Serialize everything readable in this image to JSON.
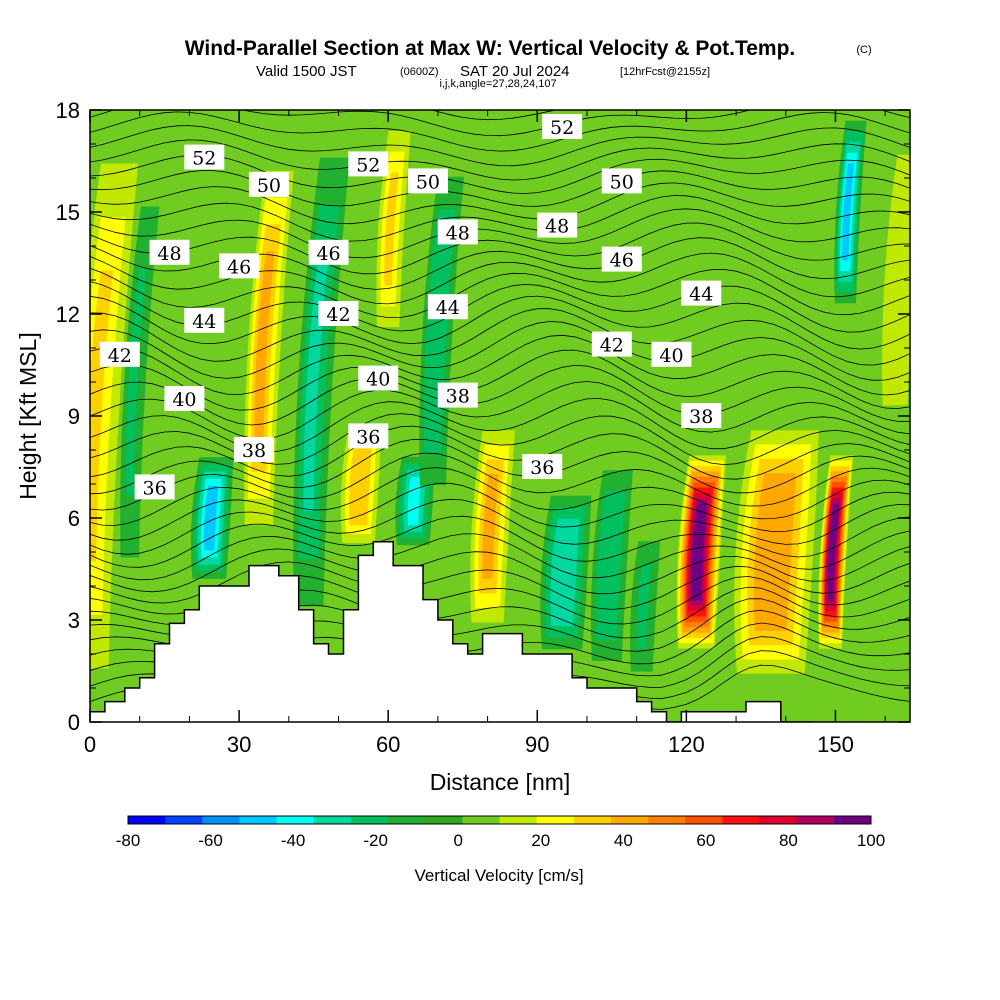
{
  "header": {
    "title": "Wind-Parallel Section at Max W: Vertical Velocity & Pot.Temp.",
    "copyright": "(C)",
    "valid_a": "Valid 1500 JST",
    "valid_z": "(0600Z)",
    "valid_b": "SAT 20 Jul 2024",
    "fcst": "[12hrFcst@2155z]",
    "indices": "i,j,k,angle=27,28,24,107"
  },
  "chart_data": {
    "type": "heatmap",
    "xlabel": "Distance [nm]",
    "ylabel": "Height [Kft MSL]",
    "xlim": [
      0,
      165
    ],
    "ylim": [
      0,
      18
    ],
    "x_ticks": [
      "0",
      "30",
      "60",
      "90",
      "120",
      "150"
    ],
    "y_ticks": [
      "0",
      "3",
      "6",
      "9",
      "12",
      "15",
      "18"
    ],
    "terrain": {
      "x": [
        0,
        3,
        3,
        7,
        7,
        10,
        10,
        13,
        13,
        16,
        16,
        19,
        19,
        22,
        22,
        32,
        32,
        38,
        38,
        42,
        42,
        45,
        45,
        48,
        48,
        51,
        51,
        54,
        54,
        57,
        57,
        61,
        61,
        67,
        67,
        70,
        70,
        73,
        73,
        76,
        76,
        79,
        79,
        87,
        87,
        97,
        97,
        100,
        100,
        110,
        110,
        113,
        113,
        116,
        116,
        119,
        119,
        132,
        132,
        139,
        139,
        145,
        145,
        165
      ],
      "y": [
        0.3,
        0.3,
        0.6,
        0.6,
        1.0,
        1.0,
        1.3,
        1.3,
        2.3,
        2.3,
        2.9,
        2.9,
        3.3,
        3.3,
        4.0,
        4.0,
        4.6,
        4.6,
        4.3,
        4.3,
        3.3,
        3.3,
        2.3,
        2.3,
        2.0,
        2.0,
        3.3,
        3.3,
        4.9,
        4.9,
        5.3,
        5.3,
        4.6,
        4.6,
        3.6,
        3.6,
        3.0,
        3.0,
        2.3,
        2.3,
        2.0,
        2.0,
        2.6,
        2.6,
        2.0,
        2.0,
        1.3,
        1.3,
        1.0,
        1.0,
        0.6,
        0.6,
        0.3,
        0.3,
        0.0,
        0.0,
        0.3,
        0.3,
        0.6,
        0.6,
        0.0,
        0.0
      ]
    },
    "vertical_velocity_bands": [
      {
        "x": 0,
        "w": 30,
        "width": 5,
        "base": 0,
        "top": 18
      },
      {
        "x": 8,
        "w": -20,
        "width": 3,
        "base": 3,
        "top": 17
      },
      {
        "x": 24,
        "w": -45,
        "width": 4,
        "base": 4,
        "top": 8
      },
      {
        "x": 34,
        "w": 40,
        "width": 3.5,
        "base": 5,
        "top": 17
      },
      {
        "x": 44,
        "w": -30,
        "width": 4,
        "base": 2,
        "top": 18
      },
      {
        "x": 54,
        "w": 35,
        "width": 4,
        "base": 5,
        "top": 9
      },
      {
        "x": 60,
        "w": 30,
        "width": 3,
        "base": 11,
        "top": 18
      },
      {
        "x": 65,
        "w": -40,
        "width": 4,
        "base": 5,
        "top": 8
      },
      {
        "x": 69,
        "w": -25,
        "width": 3.5,
        "base": 6,
        "top": 17
      },
      {
        "x": 80,
        "w": 38,
        "width": 4,
        "base": 2.5,
        "top": 9
      },
      {
        "x": 95,
        "w": -35,
        "width": 5,
        "base": 1.8,
        "top": 7
      },
      {
        "x": 104,
        "w": -25,
        "width": 4,
        "base": 1.2,
        "top": 8
      },
      {
        "x": 111,
        "w": -20,
        "width": 3.5,
        "base": 0.8,
        "top": 6
      },
      {
        "x": 122,
        "w": 100,
        "width": 4,
        "base": 2,
        "top": 8
      },
      {
        "x": 137,
        "w": 45,
        "width": 8,
        "base": 1,
        "top": 9
      },
      {
        "x": 149,
        "w": 100,
        "width": 2.5,
        "base": 2,
        "top": 8
      },
      {
        "x": 152,
        "w": -45,
        "width": 2.5,
        "base": 12,
        "top": 18
      },
      {
        "x": 162,
        "w": 15,
        "width": 4,
        "base": 8,
        "top": 18
      }
    ],
    "potential_temperature_labels": [
      {
        "text": "52",
        "x": 23,
        "y": 16.6
      },
      {
        "text": "50",
        "x": 36,
        "y": 15.8
      },
      {
        "text": "52",
        "x": 56,
        "y": 16.4
      },
      {
        "text": "50",
        "x": 68,
        "y": 15.9
      },
      {
        "text": "52",
        "x": 95,
        "y": 17.5
      },
      {
        "text": "50",
        "x": 107,
        "y": 15.9
      },
      {
        "text": "48",
        "x": 16,
        "y": 13.8
      },
      {
        "text": "46",
        "x": 30,
        "y": 13.4
      },
      {
        "text": "46",
        "x": 48,
        "y": 13.8
      },
      {
        "text": "48",
        "x": 74,
        "y": 14.4
      },
      {
        "text": "48",
        "x": 94,
        "y": 14.6
      },
      {
        "text": "46",
        "x": 107,
        "y": 13.6
      },
      {
        "text": "44",
        "x": 23,
        "y": 11.8
      },
      {
        "text": "42",
        "x": 50,
        "y": 12.0
      },
      {
        "text": "44",
        "x": 72,
        "y": 12.2
      },
      {
        "text": "44",
        "x": 123,
        "y": 12.6
      },
      {
        "text": "42",
        "x": 6,
        "y": 10.8
      },
      {
        "text": "42",
        "x": 105,
        "y": 11.1
      },
      {
        "text": "40",
        "x": 117,
        "y": 10.8
      },
      {
        "text": "40",
        "x": 19,
        "y": 9.5
      },
      {
        "text": "40",
        "x": 58,
        "y": 10.1
      },
      {
        "text": "38",
        "x": 74,
        "y": 9.6
      },
      {
        "text": "38",
        "x": 123,
        "y": 9.0
      },
      {
        "text": "38",
        "x": 33,
        "y": 8.0
      },
      {
        "text": "36",
        "x": 56,
        "y": 8.4
      },
      {
        "text": "36",
        "x": 91,
        "y": 7.5
      },
      {
        "text": "36",
        "x": 13,
        "y": 6.9
      }
    ],
    "colorbar": {
      "label": "Vertical Velocity [cm/s]",
      "ticks": [
        "-80",
        "-60",
        "-40",
        "-20",
        "0",
        "20",
        "40",
        "60",
        "80",
        "100"
      ],
      "range": [
        -80,
        100
      ],
      "colors": [
        "#0000ff",
        "#0044ff",
        "#0090ff",
        "#00c8ff",
        "#00ffee",
        "#00d8a0",
        "#00c060",
        "#22b030",
        "#30a820",
        "#70cc20",
        "#c0e800",
        "#ffff00",
        "#ffd000",
        "#ffa800",
        "#ff8000",
        "#ff5000",
        "#ff1010",
        "#e00030",
        "#b00060",
        "#700080"
      ]
    }
  }
}
